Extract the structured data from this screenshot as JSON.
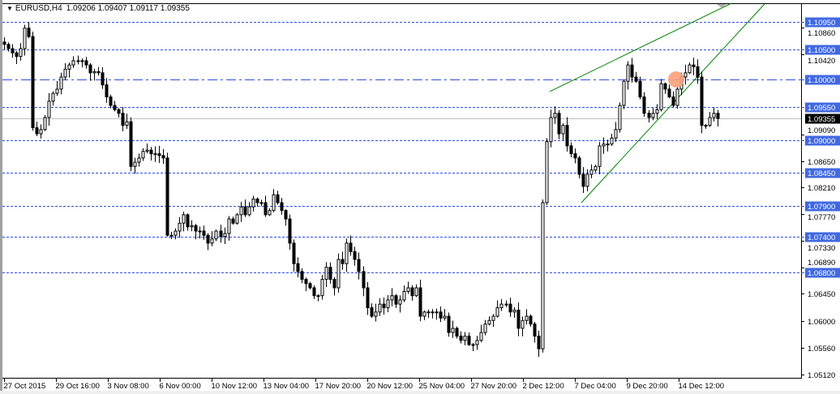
{
  "header": {
    "menu_icon": "triangle-down-icon",
    "symbol": "EURUSD,H4",
    "ohlc": "1.09206 1.09407 1.09117 1.09355"
  },
  "colors": {
    "level_line": "#3050e0",
    "level_label_bg": "#4169e1",
    "trendline": "#008000",
    "alert_marker": "#f9a07a",
    "current_price_bg": "#000000",
    "candle": "#000000"
  },
  "chart_data": {
    "type": "candlestick",
    "title": "EURUSD,H4",
    "timeframe": "H4",
    "ylim": [
      1.0505,
      1.1126
    ],
    "price_axis_ticks": [
      "1.10860",
      "1.10420",
      "1.09090",
      "1.08650",
      "1.08210",
      "1.07770",
      "1.07330",
      "1.06890",
      "1.06450",
      "1.06000",
      "1.05560",
      "1.05120"
    ],
    "time_axis_ticks": [
      "27 Oct 2015",
      "29 Oct 16:00",
      "3 Nov 08:00",
      "6 Nov 00:00",
      "10 Nov 12:00",
      "13 Nov 04:00",
      "17 Nov 20:00",
      "20 Nov 12:00",
      "25 Nov 04:00",
      "27 Nov 20:00",
      "2 Dec 12:00",
      "7 Dec 04:00",
      "9 Dec 20:00",
      "14 Dec 12:00"
    ],
    "levels": [
      {
        "price": 1.1095,
        "label": "1.10950",
        "style": "dashed"
      },
      {
        "price": 1.105,
        "label": "1.10500",
        "style": "dashed"
      },
      {
        "price": 1.1,
        "label": "1.10000",
        "style": "dashdot"
      },
      {
        "price": 1.0955,
        "label": "1.09550",
        "style": "dashed"
      },
      {
        "price": 1.09,
        "label": "1.09000",
        "style": "dashed"
      },
      {
        "price": 1.0845,
        "label": "1.08450",
        "style": "dashed"
      },
      {
        "price": 1.079,
        "label": "1.07900",
        "style": "dashed"
      },
      {
        "price": 1.074,
        "label": "1.07400",
        "style": "dashed"
      },
      {
        "price": 1.068,
        "label": "1.06800",
        "style": "dashed"
      }
    ],
    "current_price": {
      "price": 1.09355,
      "label": "1.09355"
    },
    "trendlines": [
      {
        "from_price": 1.098,
        "to_price": 1.1126
      },
      {
        "from_price": 1.0796,
        "to_price": 1.1125
      }
    ],
    "alert_marker": {
      "price": 1.1
    },
    "closes": [
      1.1058,
      1.1051,
      1.1044,
      1.1038,
      1.1051,
      1.1085,
      1.1071,
      1.092,
      1.091,
      1.0917,
      1.0937,
      1.0964,
      1.0977,
      1.0984,
      1.1004,
      1.1017,
      1.1024,
      1.1031,
      1.1031,
      1.1031,
      1.1024,
      1.1011,
      1.1013,
      1.1011,
      1.0991,
      1.0971,
      1.0957,
      1.095,
      1.0944,
      1.0924,
      1.093,
      1.0856,
      1.0863,
      1.087,
      1.0881,
      1.0883,
      1.0877,
      1.0877,
      1.0874,
      1.087,
      1.0742,
      1.0742,
      1.0749,
      1.0762,
      1.0776,
      1.0756,
      1.0758,
      1.0749,
      1.0749,
      1.0742,
      1.0729,
      1.0736,
      1.0749,
      1.074,
      1.0745,
      1.0769,
      1.0762,
      1.0776,
      1.0789,
      1.0776,
      1.0789,
      1.0802,
      1.0796,
      1.0796,
      1.0776,
      1.0783,
      1.0809,
      1.0796,
      1.0783,
      1.0769,
      1.0729,
      1.0695,
      1.0682,
      1.0669,
      1.0662,
      1.0655,
      1.0642,
      1.0642,
      1.0669,
      1.0689,
      1.0669,
      1.0655,
      1.0702,
      1.0695,
      1.0729,
      1.0715,
      1.0702,
      1.0682,
      1.0655,
      1.0622,
      1.0608,
      1.0615,
      1.0628,
      1.0622,
      1.0635,
      1.0642,
      1.0628,
      1.0635,
      1.0649,
      1.0655,
      1.0642,
      1.0655,
      1.0608,
      1.0615,
      1.0615,
      1.0615,
      1.0615,
      1.0605,
      1.0608,
      1.0581,
      1.0588,
      1.0575,
      1.0568,
      1.0575,
      1.0561,
      1.0561,
      1.0568,
      1.0581,
      1.0595,
      1.0601,
      1.0608,
      1.0622,
      1.0628,
      1.0628,
      1.0615,
      1.0618,
      1.0588,
      1.0601,
      1.0608,
      1.0595,
      1.0575,
      1.0554,
      1.0796,
      1.0897,
      1.0937,
      1.0944,
      1.091,
      1.0924,
      1.089,
      1.0877,
      1.087,
      1.0843,
      1.0823,
      1.0843,
      1.085,
      1.0856,
      1.089,
      1.0893,
      1.0893,
      1.0903,
      1.0917,
      1.0957,
      1.0997,
      1.1024,
      1.1004,
      1.0997,
      1.0971,
      1.0944,
      1.0937,
      1.0944,
      1.095,
      1.0993,
      1.0984,
      1.0971,
      1.0957,
      1.0984,
      1.1004,
      1.1011,
      1.1024,
      1.1021,
      1.1004,
      1.0924,
      1.0924,
      1.0937,
      1.0944,
      1.09355
    ]
  }
}
